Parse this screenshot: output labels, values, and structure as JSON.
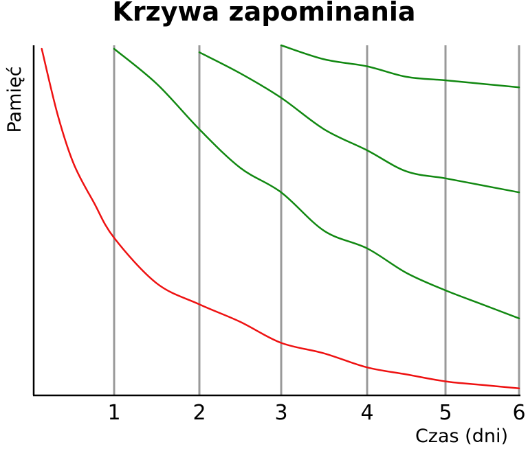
{
  "chart_data": {
    "type": "line",
    "title": "Krzywa zapominania",
    "xlabel": "Czas (dni)",
    "ylabel": "Pamięć",
    "xlim": [
      0,
      6
    ],
    "ylim": [
      0,
      100
    ],
    "x_ticks": [
      "1",
      "2",
      "3",
      "4",
      "5",
      "6"
    ],
    "grid": "vertical lines at review days 1–6",
    "colors": {
      "forgetting": "#ee1111",
      "review": "#118811",
      "grid": "#999999",
      "axis": "#000000"
    },
    "series": [
      {
        "color": "#ee1111",
        "x": [
          0.1,
          0.3,
          0.5,
          0.75,
          1,
          1.5,
          2,
          2.5,
          3,
          3.5,
          4,
          4.5,
          5,
          5.5,
          6
        ],
        "y": [
          99,
          80,
          66,
          55,
          45,
          32,
          26,
          21,
          15,
          12,
          8,
          6,
          4,
          3,
          2
        ]
      },
      {
        "color": "#118811",
        "x": [
          1,
          1.5,
          2,
          2.5,
          3,
          3.5,
          4,
          4.5,
          5,
          5.5,
          6
        ],
        "y": [
          99,
          89,
          76,
          65,
          58,
          47,
          42,
          35,
          30,
          26,
          22
        ]
      },
      {
        "color": "#118811",
        "x": [
          2,
          2.5,
          3,
          3.5,
          4,
          4.5,
          5,
          5.5,
          6
        ],
        "y": [
          98,
          92,
          85,
          76,
          70,
          64,
          62,
          60,
          58
        ]
      },
      {
        "color": "#118811",
        "x": [
          3,
          3.5,
          4,
          4.5,
          5,
          5.5,
          6
        ],
        "y": [
          100,
          96,
          94,
          91,
          90,
          89,
          88
        ]
      }
    ]
  }
}
